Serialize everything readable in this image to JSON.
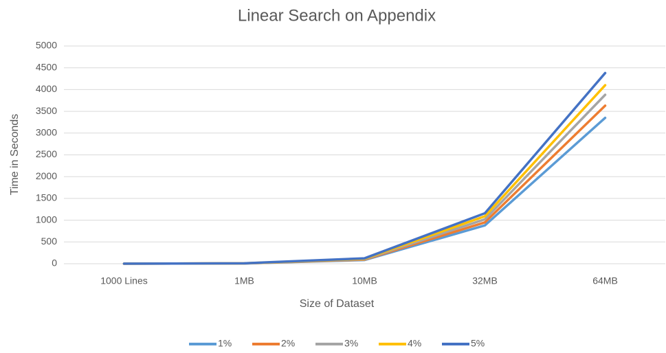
{
  "chart_data": {
    "type": "line",
    "title": "Linear Search on Appendix",
    "x_label": "Size of Dataset",
    "y_label": "Time in Seconds",
    "categories": [
      "1000 Lines",
      "1MB",
      "10MB",
      "32MB",
      "64MB"
    ],
    "series": [
      {
        "name": "1%",
        "color": "#5b9bd5",
        "values": [
          1,
          6,
          85,
          880,
          3350
        ]
      },
      {
        "name": "2%",
        "color": "#ed7d31",
        "values": [
          1,
          7,
          95,
          950,
          3630
        ]
      },
      {
        "name": "3%",
        "color": "#a5a5a5",
        "values": [
          1,
          8,
          105,
          1020,
          3880
        ]
      },
      {
        "name": "4%",
        "color": "#ffc000",
        "values": [
          1,
          9,
          115,
          1090,
          4100
        ]
      },
      {
        "name": "5%",
        "color": "#4472c4",
        "values": [
          1,
          10,
          125,
          1160,
          4380
        ]
      }
    ],
    "ylim": [
      0,
      5000
    ],
    "yticks": [
      0,
      500,
      1000,
      1500,
      2000,
      2500,
      3000,
      3500,
      4000,
      4500,
      5000
    ],
    "grid": true,
    "legend": "bottom"
  }
}
